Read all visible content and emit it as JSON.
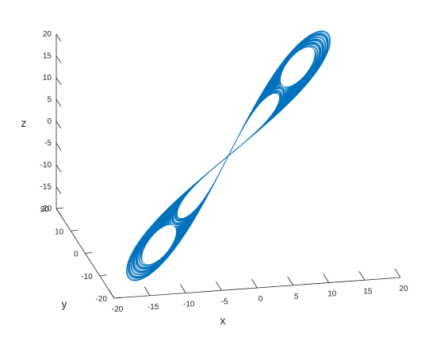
{
  "chart_data": {
    "type": "line",
    "projection": "3d",
    "series": [
      {
        "color": "#0072BD",
        "lobes": [
          {
            "x": 12,
            "y": 12,
            "z": 12
          },
          {
            "x": -12,
            "y": -12,
            "z": -12
          }
        ]
      }
    ],
    "xlabel": "x",
    "ylabel": "y",
    "zlabel": "z",
    "xlim": [
      -20,
      20
    ],
    "ylim": [
      -20,
      20
    ],
    "zlim": [
      -20,
      20
    ],
    "xticks": [
      "-20",
      "-15",
      "-10",
      "-5",
      "0",
      "5",
      "10",
      "15",
      "20"
    ],
    "yticks": [
      "-20",
      "-10",
      "0",
      "10",
      "20"
    ],
    "zticks": [
      "-20",
      "-15",
      "-10",
      "-5",
      "0",
      "5",
      "10",
      "15",
      "20"
    ],
    "grid": false,
    "legend": "none"
  }
}
